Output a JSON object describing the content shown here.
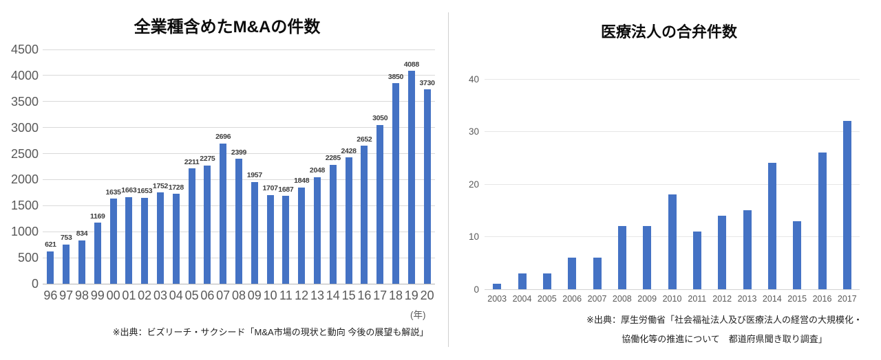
{
  "page": {
    "background": "#ffffff",
    "divider_color": "#cfcfcf",
    "accent_bar_color": "#4472C4"
  },
  "chart_data": [
    {
      "type": "bar",
      "title": "全業種含めたM&Aの件数",
      "categories": [
        "96",
        "97",
        "98",
        "99",
        "00",
        "01",
        "02",
        "03",
        "04",
        "05",
        "06",
        "07",
        "08",
        "09",
        "10",
        "11",
        "12",
        "13",
        "14",
        "15",
        "16",
        "17",
        "18",
        "19",
        "20"
      ],
      "values": [
        621,
        753,
        834,
        1169,
        1635,
        1663,
        1653,
        1752,
        1728,
        2211,
        2275,
        2696,
        2399,
        1957,
        1707,
        1687,
        1848,
        2048,
        2285,
        2428,
        2652,
        3050,
        3850,
        4088,
        3730
      ],
      "ylim": [
        0,
        4500
      ],
      "ytick_step": 500,
      "yticks": [
        0,
        500,
        1000,
        1500,
        2000,
        2500,
        3000,
        3500,
        4000,
        4500
      ],
      "bar_color": "#4472C4",
      "value_labels": true,
      "grid": true,
      "legend": "none",
      "xaxis_unit": "(年)",
      "xlabel": "",
      "ylabel": "",
      "source": "※出典：ビズリーチ・サクシード「M&A市場の現状と動向 今後の展望も解説」"
    },
    {
      "type": "bar",
      "title": "医療法人の合弁件数",
      "categories": [
        "2003",
        "2004",
        "2005",
        "2006",
        "2007",
        "2008",
        "2009",
        "2010",
        "2011",
        "2012",
        "2013",
        "2014",
        "2015",
        "2016",
        "2017"
      ],
      "values": [
        1,
        3,
        3,
        6,
        6,
        12,
        12,
        18,
        11,
        14,
        15,
        24,
        13,
        26,
        32
      ],
      "ylim": [
        0,
        40
      ],
      "ytick_step": 10,
      "yticks": [
        0,
        10,
        20,
        30,
        40
      ],
      "bar_color": "#4472C4",
      "value_labels": false,
      "grid": true,
      "legend": "none",
      "xlabel": "",
      "ylabel": "",
      "source_lines": [
        "※出典：厚生労働省「社会福祉法人及び医療法人の経営の大規模化・",
        "協働化等の推進について　都道府県聞き取り調査」"
      ]
    }
  ]
}
